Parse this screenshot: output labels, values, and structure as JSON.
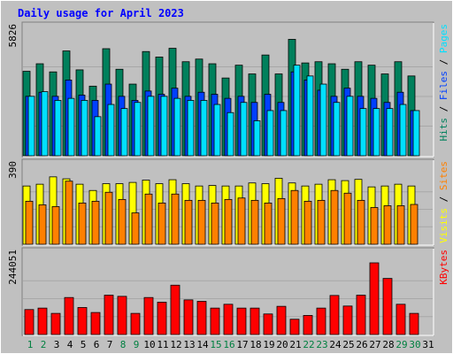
{
  "chart_data": {
    "type": "bar",
    "title": "Daily usage for April 2023",
    "categories": [
      "1",
      "2",
      "3",
      "4",
      "5",
      "6",
      "7",
      "8",
      "9",
      "10",
      "11",
      "12",
      "13",
      "14",
      "15",
      "16",
      "17",
      "18",
      "19",
      "20",
      "21",
      "22",
      "23",
      "24",
      "25",
      "26",
      "27",
      "28",
      "29",
      "30",
      "31"
    ],
    "weekend_days": [
      1,
      2,
      8,
      9,
      15,
      16,
      22,
      23,
      29,
      30
    ],
    "colors": {
      "background": "#c0c0c0",
      "frame": "#ffffff",
      "title": "#0000ff",
      "weekday_label": "#000000",
      "weekend_label": "#008040",
      "hits": "#00805c",
      "files": "#0040ff",
      "pages": "#00e0ff",
      "visits": "#ffff00",
      "sites": "#ff8000",
      "kbytes": "#ff0000"
    },
    "panels": [
      {
        "id": "hits-files-pages",
        "ymax": 5826,
        "ymax_label": "5826",
        "legend": [
          {
            "text": "Hits",
            "color": "#00805c"
          },
          {
            "text": "Files",
            "color": "#0040ff"
          },
          {
            "text": "Pages",
            "color": "#00e0ff"
          }
        ],
        "series": [
          {
            "name": "Hits",
            "color": "#00805c",
            "values": [
              4150,
              4520,
              4120,
              5150,
              4220,
              3420,
              5260,
              4250,
              3520,
              5120,
              4850,
              5280,
              4620,
              4750,
              4520,
              3820,
              4450,
              4020,
              4950,
              4020,
              5720,
              4560,
              4620,
              4520,
              4250,
              4620,
              4450,
              4020,
              4620,
              3920,
              0
            ]
          },
          {
            "name": "Files",
            "color": "#0040ff",
            "values": [
              2920,
              3120,
              2920,
              3720,
              2980,
              2720,
              3520,
              2920,
              2720,
              3180,
              3020,
              3320,
              2920,
              3120,
              3020,
              2820,
              2920,
              2620,
              3020,
              2620,
              4120,
              3720,
              3220,
              2920,
              3320,
              2920,
              2820,
              2620,
              3120,
              2220,
              0
            ]
          },
          {
            "name": "Pages",
            "color": "#00e0ff",
            "values": [
              2920,
              3150,
              2720,
              2820,
              2720,
              1920,
              2520,
              2320,
              2620,
              2920,
              2920,
              2820,
              2720,
              2720,
              2520,
              2120,
              2620,
              1720,
              2220,
              2220,
              4450,
              3920,
              3520,
              2620,
              2920,
              2320,
              2320,
              2320,
              2520,
              2220,
              0
            ]
          }
        ]
      },
      {
        "id": "visits-sites",
        "ymax": 390,
        "ymax_label": "390",
        "legend": [
          {
            "text": "Visits",
            "color": "#ffff00"
          },
          {
            "text": "Sites",
            "color": "#ff8000"
          }
        ],
        "series": [
          {
            "name": "Visits",
            "color": "#ffff00",
            "values": [
              325,
              335,
              376,
              365,
              335,
              300,
              338,
              338,
              345,
              358,
              338,
              360,
              338,
              325,
              328,
              325,
              325,
              342,
              338,
              368,
              342,
              325,
              335,
              360,
              355,
              362,
              320,
              325,
              335,
              325,
              0
            ]
          },
          {
            "name": "Sites",
            "color": "#ff8000",
            "values": [
              240,
              220,
              210,
              352,
              230,
              240,
              290,
              250,
              175,
              280,
              230,
              280,
              245,
              245,
              230,
              250,
              258,
              245,
              230,
              255,
              300,
              240,
              245,
              300,
              285,
              245,
              205,
              215,
              215,
              222,
              0
            ]
          }
        ]
      },
      {
        "id": "kbytes",
        "ymax": 244051,
        "ymax_label": "244051",
        "legend": [
          {
            "text": "KBytes",
            "color": "#ff0000"
          }
        ],
        "series": [
          {
            "name": "KBytes",
            "color": "#ff0000",
            "values": [
              85000,
              90000,
              72000,
              126000,
              92000,
              75000,
              134000,
              130000,
              72000,
              126000,
              110000,
              168000,
              118000,
              113000,
              90000,
              103000,
              90000,
              90000,
              70000,
              96000,
              52000,
              65000,
              90000,
              133000,
              97000,
              134000,
              244051,
              191000,
              103000,
              72000,
              0
            ]
          }
        ]
      }
    ]
  }
}
